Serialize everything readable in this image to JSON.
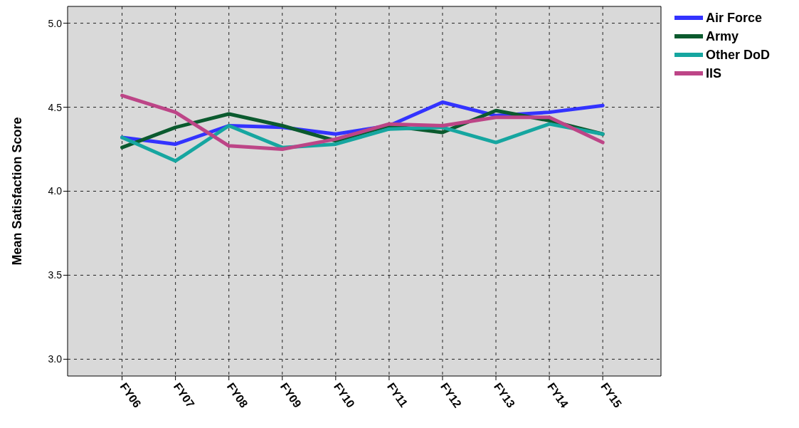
{
  "chart_data": {
    "type": "line",
    "ylabel": "Mean Satisfaction Score",
    "categories": [
      "FY06",
      "FY07",
      "FY08",
      "FY09",
      "FY10",
      "FY11",
      "FY12",
      "FY13",
      "FY14",
      "FY15"
    ],
    "series": [
      {
        "name": "Air Force",
        "color": "#3333ff",
        "values": [
          4.32,
          4.28,
          4.39,
          4.38,
          4.34,
          4.39,
          4.53,
          4.45,
          4.47,
          4.51
        ]
      },
      {
        "name": "Army",
        "color": "#0b5a2e",
        "values": [
          4.26,
          4.38,
          4.46,
          4.39,
          4.3,
          4.39,
          4.35,
          4.48,
          4.42,
          4.34
        ]
      },
      {
        "name": "Other DoD",
        "color": "#16a6a0",
        "values": [
          4.32,
          4.18,
          4.39,
          4.26,
          4.28,
          4.37,
          4.38,
          4.29,
          4.4,
          4.34
        ]
      },
      {
        "name": "IIS",
        "color": "#bd4587",
        "values": [
          4.57,
          4.47,
          4.27,
          4.25,
          4.31,
          4.4,
          4.39,
          4.44,
          4.44,
          4.29
        ]
      }
    ],
    "ylim": [
      2.9,
      5.1
    ],
    "yticks": [
      {
        "value": 3,
        "label": "3.0"
      },
      {
        "value": 3.5,
        "label": "3.5"
      },
      {
        "value": 4,
        "label": "4.0"
      },
      {
        "value": 4.5,
        "label": "4.5"
      },
      {
        "value": 5,
        "label": "5.0"
      }
    ],
    "grid": true,
    "legend": "top right",
    "line_style": "solid"
  }
}
